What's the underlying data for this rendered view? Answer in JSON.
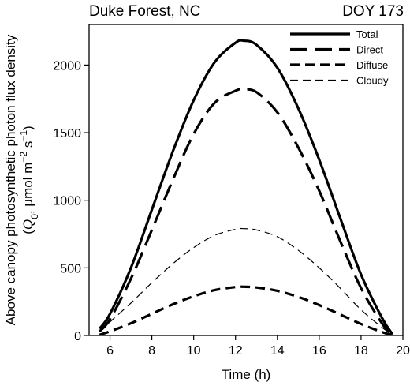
{
  "chart_data": {
    "type": "line",
    "title_left": "Duke Forest, NC",
    "title_right": "DOY 173",
    "xlabel": "Time (h)",
    "ylabel_line1": "Above canopy photosynthetic photon flux density",
    "ylabel_line2": {
      "open": "(",
      "symbol": "Q",
      "subscript": "0",
      "mid": ", µmol m",
      "exp1": "−2",
      "s": " s",
      "exp2": "−1",
      "close": ")"
    },
    "xlim": [
      5,
      20
    ],
    "ylim": [
      0,
      2300
    ],
    "xticks": [
      6,
      8,
      10,
      12,
      14,
      16,
      18,
      20
    ],
    "yticks": [
      0,
      500,
      1000,
      1500,
      2000
    ],
    "grid": false,
    "legend_position": "top-right",
    "series": [
      {
        "name": "Total",
        "style": "solid",
        "stroke_width": 3.2,
        "x": [
          5.5,
          6,
          7,
          8,
          9,
          10,
          11,
          12,
          12.4,
          13,
          14,
          15,
          16,
          17,
          18,
          19,
          19.5
        ],
        "y": [
          50,
          160,
          500,
          930,
          1360,
          1740,
          2020,
          2165,
          2180,
          2150,
          1980,
          1680,
          1300,
          870,
          450,
          130,
          10
        ]
      },
      {
        "name": "Direct",
        "style": "long-dash",
        "stroke_width": 3.2,
        "x": [
          5.5,
          6,
          7,
          8,
          9,
          10,
          11,
          12,
          12.4,
          13,
          14,
          15,
          16,
          17,
          18,
          19,
          19.5
        ],
        "y": [
          30,
          120,
          420,
          780,
          1150,
          1490,
          1720,
          1810,
          1820,
          1800,
          1650,
          1390,
          1070,
          700,
          350,
          90,
          5
        ]
      },
      {
        "name": "Diffuse",
        "style": "short-dash",
        "stroke_width": 3.2,
        "x": [
          5.5,
          6,
          7,
          8,
          9,
          10,
          11,
          12,
          12.4,
          13,
          14,
          15,
          16,
          17,
          18,
          19,
          19.5
        ],
        "y": [
          5,
          30,
          90,
          160,
          230,
          290,
          335,
          358,
          360,
          355,
          330,
          285,
          225,
          155,
          85,
          25,
          3
        ]
      },
      {
        "name": "Cloudy",
        "style": "thin-dash",
        "stroke_width": 1.2,
        "x": [
          5.5,
          6,
          7,
          8,
          9,
          10,
          11,
          12,
          12.4,
          13,
          14,
          15,
          16,
          17,
          18,
          19,
          19.5
        ],
        "y": [
          30,
          100,
          240,
          390,
          530,
          650,
          740,
          785,
          790,
          780,
          730,
          630,
          500,
          350,
          190,
          60,
          5
        ]
      }
    ]
  }
}
